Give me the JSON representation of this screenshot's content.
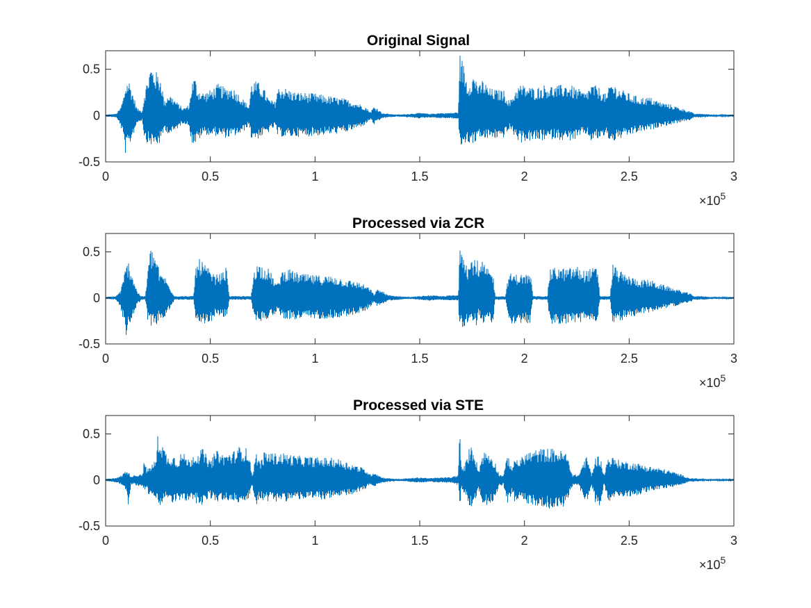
{
  "chart_data": [
    {
      "type": "line",
      "title": "Original Signal",
      "xlabel": "",
      "ylabel": "",
      "xlim": [
        0,
        300000
      ],
      "ylim": [
        -0.5,
        0.7
      ],
      "x_ticks": [
        0,
        0.5,
        1,
        1.5,
        2,
        2.5,
        3
      ],
      "x_tick_labels": [
        "0",
        "0.5",
        "1",
        "1.5",
        "2",
        "2.5",
        "3"
      ],
      "x_exponent_label": "×10",
      "x_exponent": "5",
      "y_ticks": [
        -0.5,
        0,
        0.5
      ],
      "y_tick_labels": [
        "-0.5",
        "0",
        "0.5"
      ],
      "grid": false,
      "color": "#0072BD",
      "envelope": {
        "x": [
          0,
          5000,
          7000,
          8500,
          9500,
          11000,
          13000,
          15000,
          17500,
          18500,
          20000,
          21500,
          24000,
          26500,
          28000,
          30000,
          32000,
          34000,
          37000,
          40000,
          41000,
          42500,
          44000,
          47000,
          50000,
          54000,
          57000,
          60000,
          62000,
          65000,
          68500,
          69500,
          71000,
          73000,
          75000,
          78000,
          81000,
          82000,
          84000,
          87000,
          90000,
          95000,
          100000,
          110000,
          115000,
          120000,
          124000,
          126500,
          128000,
          130000,
          132000,
          135000,
          140000,
          145000,
          150000,
          155000,
          160000,
          165000,
          168500,
          169000,
          170500,
          173000,
          175000,
          177500,
          178000,
          180000,
          183000,
          187000,
          190000,
          193000,
          196000,
          198000,
          200000,
          205000,
          210000,
          215000,
          220000,
          225000,
          229000,
          232000,
          235000,
          239500,
          241000,
          245000,
          250000,
          255000,
          260000,
          265000,
          270000,
          275000,
          279000,
          281000,
          285000,
          290000,
          295000,
          300000
        ],
        "upper": [
          0.01,
          0.02,
          0.08,
          0.2,
          0.35,
          0.4,
          0.25,
          0.08,
          0.05,
          0.25,
          0.4,
          0.55,
          0.48,
          0.42,
          0.15,
          0.25,
          0.2,
          0.15,
          0.08,
          0.12,
          0.35,
          0.43,
          0.3,
          0.25,
          0.28,
          0.35,
          0.3,
          0.32,
          0.28,
          0.2,
          0.1,
          0.35,
          0.38,
          0.36,
          0.32,
          0.18,
          0.15,
          0.3,
          0.32,
          0.29,
          0.26,
          0.25,
          0.24,
          0.2,
          0.18,
          0.14,
          0.1,
          0.04,
          0.1,
          0.08,
          0.03,
          0.02,
          0.01,
          0.02,
          0.03,
          0.02,
          0.03,
          0.03,
          0.04,
          0.68,
          0.6,
          0.35,
          0.45,
          0.42,
          0.3,
          0.4,
          0.3,
          0.28,
          0.28,
          0.15,
          0.3,
          0.34,
          0.33,
          0.3,
          0.34,
          0.32,
          0.35,
          0.3,
          0.25,
          0.34,
          0.32,
          0.22,
          0.38,
          0.3,
          0.24,
          0.2,
          0.2,
          0.15,
          0.12,
          0.08,
          0.05,
          0.02,
          0.02,
          0.01,
          0.01,
          0.01
        ],
        "lower": [
          -0.01,
          -0.02,
          -0.1,
          -0.25,
          -0.42,
          -0.35,
          -0.22,
          -0.08,
          -0.05,
          -0.25,
          -0.3,
          -0.32,
          -0.33,
          -0.3,
          -0.15,
          -0.2,
          -0.2,
          -0.15,
          -0.08,
          -0.12,
          -0.3,
          -0.32,
          -0.28,
          -0.2,
          -0.22,
          -0.22,
          -0.24,
          -0.24,
          -0.22,
          -0.2,
          -0.1,
          -0.25,
          -0.25,
          -0.25,
          -0.22,
          -0.18,
          -0.12,
          -0.22,
          -0.23,
          -0.24,
          -0.23,
          -0.23,
          -0.22,
          -0.2,
          -0.18,
          -0.14,
          -0.1,
          -0.04,
          -0.1,
          -0.07,
          -0.03,
          -0.02,
          -0.01,
          -0.02,
          -0.03,
          -0.02,
          -0.03,
          -0.03,
          -0.04,
          -0.35,
          -0.32,
          -0.3,
          -0.3,
          -0.3,
          -0.2,
          -0.28,
          -0.25,
          -0.25,
          -0.24,
          -0.15,
          -0.25,
          -0.3,
          -0.28,
          -0.28,
          -0.27,
          -0.25,
          -0.28,
          -0.26,
          -0.2,
          -0.28,
          -0.26,
          -0.22,
          -0.3,
          -0.26,
          -0.22,
          -0.18,
          -0.16,
          -0.12,
          -0.1,
          -0.07,
          -0.05,
          -0.02,
          -0.02,
          -0.01,
          -0.01,
          -0.01
        ]
      }
    },
    {
      "type": "line",
      "title": "Processed via ZCR",
      "xlabel": "",
      "ylabel": "",
      "xlim": [
        0,
        300000
      ],
      "ylim": [
        -0.5,
        0.7
      ],
      "x_ticks": [
        0,
        0.5,
        1,
        1.5,
        2,
        2.5,
        3
      ],
      "x_tick_labels": [
        "0",
        "0.5",
        "1",
        "1.5",
        "2",
        "2.5",
        "3"
      ],
      "x_exponent_label": "×10",
      "x_exponent": "5",
      "y_ticks": [
        -0.5,
        0,
        0.5
      ],
      "y_tick_labels": [
        "-0.5",
        "0",
        "0.5"
      ],
      "grid": false,
      "color": "#0072BD",
      "envelope": {
        "x": [
          0,
          5000,
          7000,
          8500,
          9500,
          11000,
          13000,
          15000,
          17000,
          19000,
          20000,
          21500,
          24000,
          26000,
          27500,
          29000,
          33000,
          35000,
          38000,
          42000,
          43000,
          45000,
          50000,
          52000,
          56000,
          58000,
          59000,
          65000,
          69500,
          71000,
          73000,
          75000,
          78000,
          81000,
          82000,
          84000,
          87000,
          90000,
          95000,
          100000,
          110000,
          115000,
          120000,
          124000,
          126500,
          128000,
          130000,
          132000,
          135000,
          140000,
          145000,
          150000,
          155000,
          160000,
          165000,
          168500,
          169000,
          170500,
          173000,
          175000,
          177500,
          178000,
          180000,
          183000,
          185000,
          186000,
          191000,
          192500,
          194000,
          203000,
          204000,
          211000,
          212000,
          213000,
          215000,
          220000,
          225000,
          228000,
          235000,
          236000,
          241000,
          242000,
          245000,
          250000,
          255000,
          260000,
          265000,
          270000,
          275000,
          279000,
          281000,
          285000,
          290000,
          295000,
          300000
        ],
        "upper": [
          0.01,
          0.02,
          0.08,
          0.2,
          0.35,
          0.4,
          0.25,
          0.08,
          0.02,
          0.02,
          0.3,
          0.55,
          0.48,
          0.25,
          0.28,
          0.2,
          0.02,
          0.02,
          0.02,
          0.02,
          0.35,
          0.43,
          0.3,
          0.25,
          0.28,
          0.35,
          0.02,
          0.02,
          0.02,
          0.35,
          0.38,
          0.36,
          0.32,
          0.18,
          0.15,
          0.3,
          0.32,
          0.29,
          0.26,
          0.25,
          0.24,
          0.2,
          0.18,
          0.14,
          0.1,
          0.04,
          0.1,
          0.08,
          0.03,
          0.02,
          0.01,
          0.02,
          0.03,
          0.02,
          0.03,
          0.03,
          0.68,
          0.6,
          0.35,
          0.45,
          0.42,
          0.3,
          0.4,
          0.3,
          0.28,
          0.02,
          0.02,
          0.28,
          0.26,
          0.26,
          0.02,
          0.02,
          0.3,
          0.32,
          0.34,
          0.32,
          0.35,
          0.3,
          0.34,
          0.02,
          0.02,
          0.38,
          0.3,
          0.24,
          0.2,
          0.2,
          0.15,
          0.12,
          0.08,
          0.05,
          0.02,
          0.02,
          0.01,
          0.01,
          0.01
        ],
        "lower": [
          -0.01,
          -0.02,
          -0.1,
          -0.25,
          -0.42,
          -0.35,
          -0.22,
          -0.08,
          -0.02,
          -0.02,
          -0.25,
          -0.3,
          -0.32,
          -0.22,
          -0.24,
          -0.2,
          -0.02,
          -0.02,
          -0.02,
          -0.02,
          -0.3,
          -0.32,
          -0.28,
          -0.2,
          -0.22,
          -0.22,
          -0.02,
          -0.02,
          -0.02,
          -0.25,
          -0.25,
          -0.25,
          -0.22,
          -0.18,
          -0.12,
          -0.22,
          -0.23,
          -0.24,
          -0.23,
          -0.23,
          -0.22,
          -0.2,
          -0.18,
          -0.14,
          -0.1,
          -0.04,
          -0.1,
          -0.07,
          -0.03,
          -0.02,
          -0.01,
          -0.02,
          -0.03,
          -0.02,
          -0.03,
          -0.03,
          -0.35,
          -0.32,
          -0.3,
          -0.3,
          -0.3,
          -0.2,
          -0.28,
          -0.25,
          -0.32,
          -0.02,
          -0.02,
          -0.25,
          -0.28,
          -0.28,
          -0.02,
          -0.02,
          -0.26,
          -0.28,
          -0.3,
          -0.28,
          -0.28,
          -0.26,
          -0.28,
          -0.02,
          -0.02,
          -0.3,
          -0.26,
          -0.22,
          -0.18,
          -0.16,
          -0.12,
          -0.1,
          -0.07,
          -0.05,
          -0.02,
          -0.02,
          -0.01,
          -0.01,
          -0.01
        ]
      }
    },
    {
      "type": "line",
      "title": "Processed via STE",
      "xlabel": "",
      "ylabel": "",
      "xlim": [
        0,
        300000
      ],
      "ylim": [
        -0.5,
        0.7
      ],
      "x_ticks": [
        0,
        0.5,
        1,
        1.5,
        2,
        2.5,
        3
      ],
      "x_tick_labels": [
        "0",
        "0.5",
        "1",
        "1.5",
        "2",
        "2.5",
        "3"
      ],
      "x_exponent_label": "×10",
      "x_exponent": "5",
      "y_ticks": [
        -0.5,
        0,
        0.5
      ],
      "y_tick_labels": [
        "-0.5",
        "0",
        "0.5"
      ],
      "grid": false,
      "color": "#0072BD",
      "envelope": {
        "x": [
          0,
          6000,
          8000,
          10000,
          11000,
          12000,
          15000,
          18000,
          18500,
          19500,
          21000,
          24000,
          25000,
          26500,
          28000,
          30000,
          32000,
          34000,
          36000,
          38000,
          40000,
          42000,
          44000,
          46000,
          48000,
          50000,
          52000,
          54000,
          56000,
          58000,
          60000,
          62000,
          64000,
          66000,
          68000,
          70000,
          72000,
          74000,
          76000,
          78000,
          80000,
          82000,
          84000,
          87000,
          90000,
          95000,
          100000,
          110000,
          115000,
          120000,
          124000,
          126500,
          128000,
          130000,
          132000,
          135000,
          140000,
          145000,
          150000,
          155000,
          160000,
          165000,
          168500,
          169000,
          170000,
          172000,
          174000,
          176000,
          178000,
          180000,
          182000,
          184000,
          186000,
          188000,
          190000,
          192000,
          194000,
          196000,
          198000,
          200000,
          205000,
          210000,
          215000,
          220000,
          223000,
          226000,
          228000,
          230000,
          232000,
          234000,
          236000,
          238000,
          240000,
          242000,
          245000,
          250000,
          255000,
          260000,
          265000,
          270000,
          275000,
          279000,
          281000,
          285000,
          290000,
          295000,
          300000
        ],
        "upper": [
          0.01,
          0.03,
          0.06,
          0.12,
          0.08,
          0.05,
          0.06,
          0.08,
          0.3,
          0.1,
          0.15,
          0.22,
          0.52,
          0.45,
          0.35,
          0.25,
          0.3,
          0.22,
          0.3,
          0.28,
          0.22,
          0.3,
          0.3,
          0.35,
          0.28,
          0.2,
          0.3,
          0.33,
          0.28,
          0.3,
          0.3,
          0.33,
          0.37,
          0.36,
          0.34,
          0.06,
          0.3,
          0.2,
          0.32,
          0.3,
          0.3,
          0.29,
          0.3,
          0.29,
          0.27,
          0.26,
          0.25,
          0.24,
          0.2,
          0.16,
          0.12,
          0.06,
          0.1,
          0.06,
          0.03,
          0.02,
          0.01,
          0.02,
          0.03,
          0.02,
          0.03,
          0.03,
          0.06,
          0.68,
          0.1,
          0.2,
          0.38,
          0.35,
          0.1,
          0.3,
          0.32,
          0.28,
          0.2,
          0.06,
          0.06,
          0.28,
          0.15,
          0.25,
          0.22,
          0.3,
          0.33,
          0.35,
          0.34,
          0.3,
          0.06,
          0.06,
          0.2,
          0.26,
          0.06,
          0.25,
          0.28,
          0.06,
          0.26,
          0.25,
          0.22,
          0.2,
          0.18,
          0.15,
          0.13,
          0.1,
          0.06,
          0.02,
          0.02,
          0.01,
          0.01,
          0.01,
          0.01
        ],
        "lower": [
          -0.01,
          -0.03,
          -0.06,
          -0.12,
          -0.33,
          -0.05,
          -0.06,
          -0.08,
          -0.12,
          -0.08,
          -0.2,
          -0.2,
          -0.3,
          -0.28,
          -0.22,
          -0.2,
          -0.26,
          -0.22,
          -0.25,
          -0.24,
          -0.22,
          -0.24,
          -0.26,
          -0.27,
          -0.24,
          -0.2,
          -0.24,
          -0.25,
          -0.22,
          -0.24,
          -0.25,
          -0.24,
          -0.25,
          -0.25,
          -0.24,
          -0.06,
          -0.28,
          -0.2,
          -0.24,
          -0.23,
          -0.24,
          -0.23,
          -0.24,
          -0.23,
          -0.22,
          -0.21,
          -0.22,
          -0.2,
          -0.18,
          -0.14,
          -0.1,
          -0.05,
          -0.08,
          -0.05,
          -0.03,
          -0.02,
          -0.01,
          -0.02,
          -0.03,
          -0.02,
          -0.03,
          -0.03,
          -0.06,
          -0.33,
          -0.1,
          -0.2,
          -0.3,
          -0.28,
          -0.1,
          -0.26,
          -0.28,
          -0.25,
          -0.2,
          -0.06,
          -0.06,
          -0.25,
          -0.15,
          -0.28,
          -0.22,
          -0.25,
          -0.28,
          -0.3,
          -0.33,
          -0.28,
          -0.06,
          -0.06,
          -0.2,
          -0.25,
          -0.06,
          -0.26,
          -0.28,
          -0.06,
          -0.24,
          -0.22,
          -0.2,
          -0.18,
          -0.16,
          -0.12,
          -0.1,
          -0.08,
          -0.05,
          -0.02,
          -0.02,
          -0.01,
          -0.01,
          -0.01,
          -0.01
        ]
      }
    }
  ]
}
